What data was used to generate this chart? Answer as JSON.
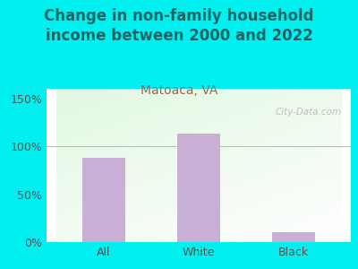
{
  "title": "Change in non-family household\nincome between 2000 and 2022",
  "subtitle": "Matoaca, VA",
  "categories": [
    "All",
    "White",
    "Black"
  ],
  "values": [
    88,
    113,
    10
  ],
  "bar_color": "#c9aed6",
  "title_color": "#1a6666",
  "subtitle_color": "#996655",
  "bg_color": "#00f0f0",
  "ylabel_ticks": [
    0,
    50,
    100,
    150
  ],
  "ylabel_labels": [
    "0%",
    "50%",
    "100%",
    "150%"
  ],
  "ylim": [
    0,
    160
  ],
  "watermark": "City-Data.com",
  "title_fontsize": 12,
  "subtitle_fontsize": 10
}
